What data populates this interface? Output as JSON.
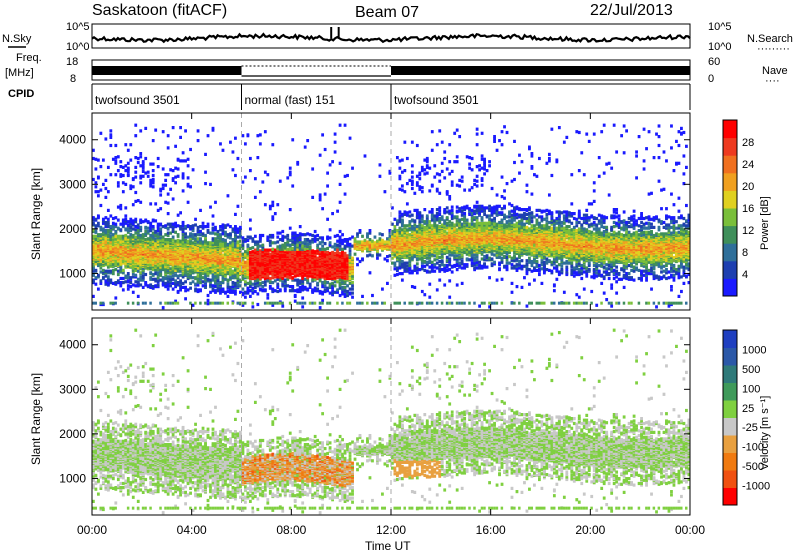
{
  "header": {
    "station": "Saskatoon (fitACF)",
    "beam": "Beam 07",
    "date": "22/Jul/2013"
  },
  "side_labels": {
    "nsky": "N.Sky",
    "freq": "Freq.",
    "mhz": "[MHz]",
    "cpid": "CPID",
    "nsearch": "N.Search",
    "nave": "Nave",
    "dots_a": "·········",
    "dots_b": "····"
  },
  "noise_ticks": {
    "left_top": "10^5",
    "left_bottom": "10^0",
    "right_top": "10^5",
    "right_bottom": "10^0"
  },
  "freq_ticks": {
    "left_top": "18",
    "left_bottom": "8",
    "right_top": "60",
    "right_bottom": "0"
  },
  "cpid_segments": [
    {
      "label": "twofsound 3501",
      "start_hour": 0,
      "end_hour": 6
    },
    {
      "label": "normal (fast) 151",
      "start_hour": 6,
      "end_hour": 12
    },
    {
      "label": "twofsound 3501",
      "start_hour": 12,
      "end_hour": 24
    }
  ],
  "x_axis": {
    "label": "Time UT",
    "ticks": [
      "00:00",
      "04:00",
      "08:00",
      "12:00",
      "16:00",
      "20:00",
      "00:00"
    ]
  },
  "y_axis": {
    "label": "Slant Range [km]",
    "ticks": [
      "1000",
      "2000",
      "3000",
      "4000"
    ]
  },
  "power_colorbar": {
    "label": "Power [dB]",
    "ticks": [
      "4",
      "8",
      "12",
      "16",
      "20",
      "24",
      "28"
    ],
    "colors": [
      "#1a1aff",
      "#1e3fb0",
      "#2f6f9a",
      "#3f8f5a",
      "#7abf3a",
      "#e0d020",
      "#f0a020",
      "#f07020",
      "#ee3a20",
      "#ff0000"
    ]
  },
  "velocity_colorbar": {
    "label": "Velocity [m s⁻¹]",
    "ticks": [
      "1000",
      "500",
      "100",
      "25",
      "-25",
      "-100",
      "-500",
      "-1000"
    ],
    "colors": [
      "#1f3fc0",
      "#2b58a8",
      "#2f7a7a",
      "#3f9a5a",
      "#7fd040",
      "#c8c8c8",
      "#e8a040",
      "#f07a10",
      "#f05010",
      "#ff0000"
    ]
  },
  "chart_data": [
    {
      "type": "heatmap",
      "panel": "power",
      "title": "",
      "xlabel": "Time UT",
      "ylabel": "Slant Range [km]",
      "xlim": [
        "00:00",
        "24:00"
      ],
      "ylim": [
        180,
        4600
      ],
      "colorbar_label": "Power [dB]",
      "colorbar_range": [
        0,
        32
      ],
      "mode_boundaries_hours": [
        6,
        12
      ],
      "scatter_bands": [
        {
          "start_hour": 0,
          "end_hour": 6,
          "range_km": [
            1050,
            2000
          ],
          "power_db": 18
        },
        {
          "start_hour": 6,
          "end_hour": 10,
          "range_km": [
            850,
            1500
          ],
          "power_db": 30
        },
        {
          "start_hour": 12,
          "end_hour": 24,
          "range_km": [
            1300,
            2100
          ],
          "power_db": 16
        }
      ]
    },
    {
      "type": "heatmap",
      "panel": "velocity",
      "title": "",
      "xlabel": "Time UT",
      "ylabel": "Slant Range [km]",
      "xlim": [
        "00:00",
        "24:00"
      ],
      "ylim": [
        180,
        4600
      ],
      "colorbar_label": "Velocity [m s⁻¹]",
      "colorbar_range": [
        -1000,
        1000
      ],
      "mode_boundaries_hours": [
        6,
        12
      ],
      "scatter_bands": [
        {
          "start_hour": 0,
          "end_hour": 6,
          "range_km": [
            1100,
            2000
          ],
          "velocity_ms": 0
        },
        {
          "start_hour": 6,
          "end_hour": 10,
          "range_km": [
            1000,
            1700
          ],
          "velocity_ms": -200
        },
        {
          "start_hour": 12,
          "end_hour": 24,
          "range_km": [
            1300,
            2100
          ],
          "velocity_ms": 0
        }
      ]
    }
  ]
}
